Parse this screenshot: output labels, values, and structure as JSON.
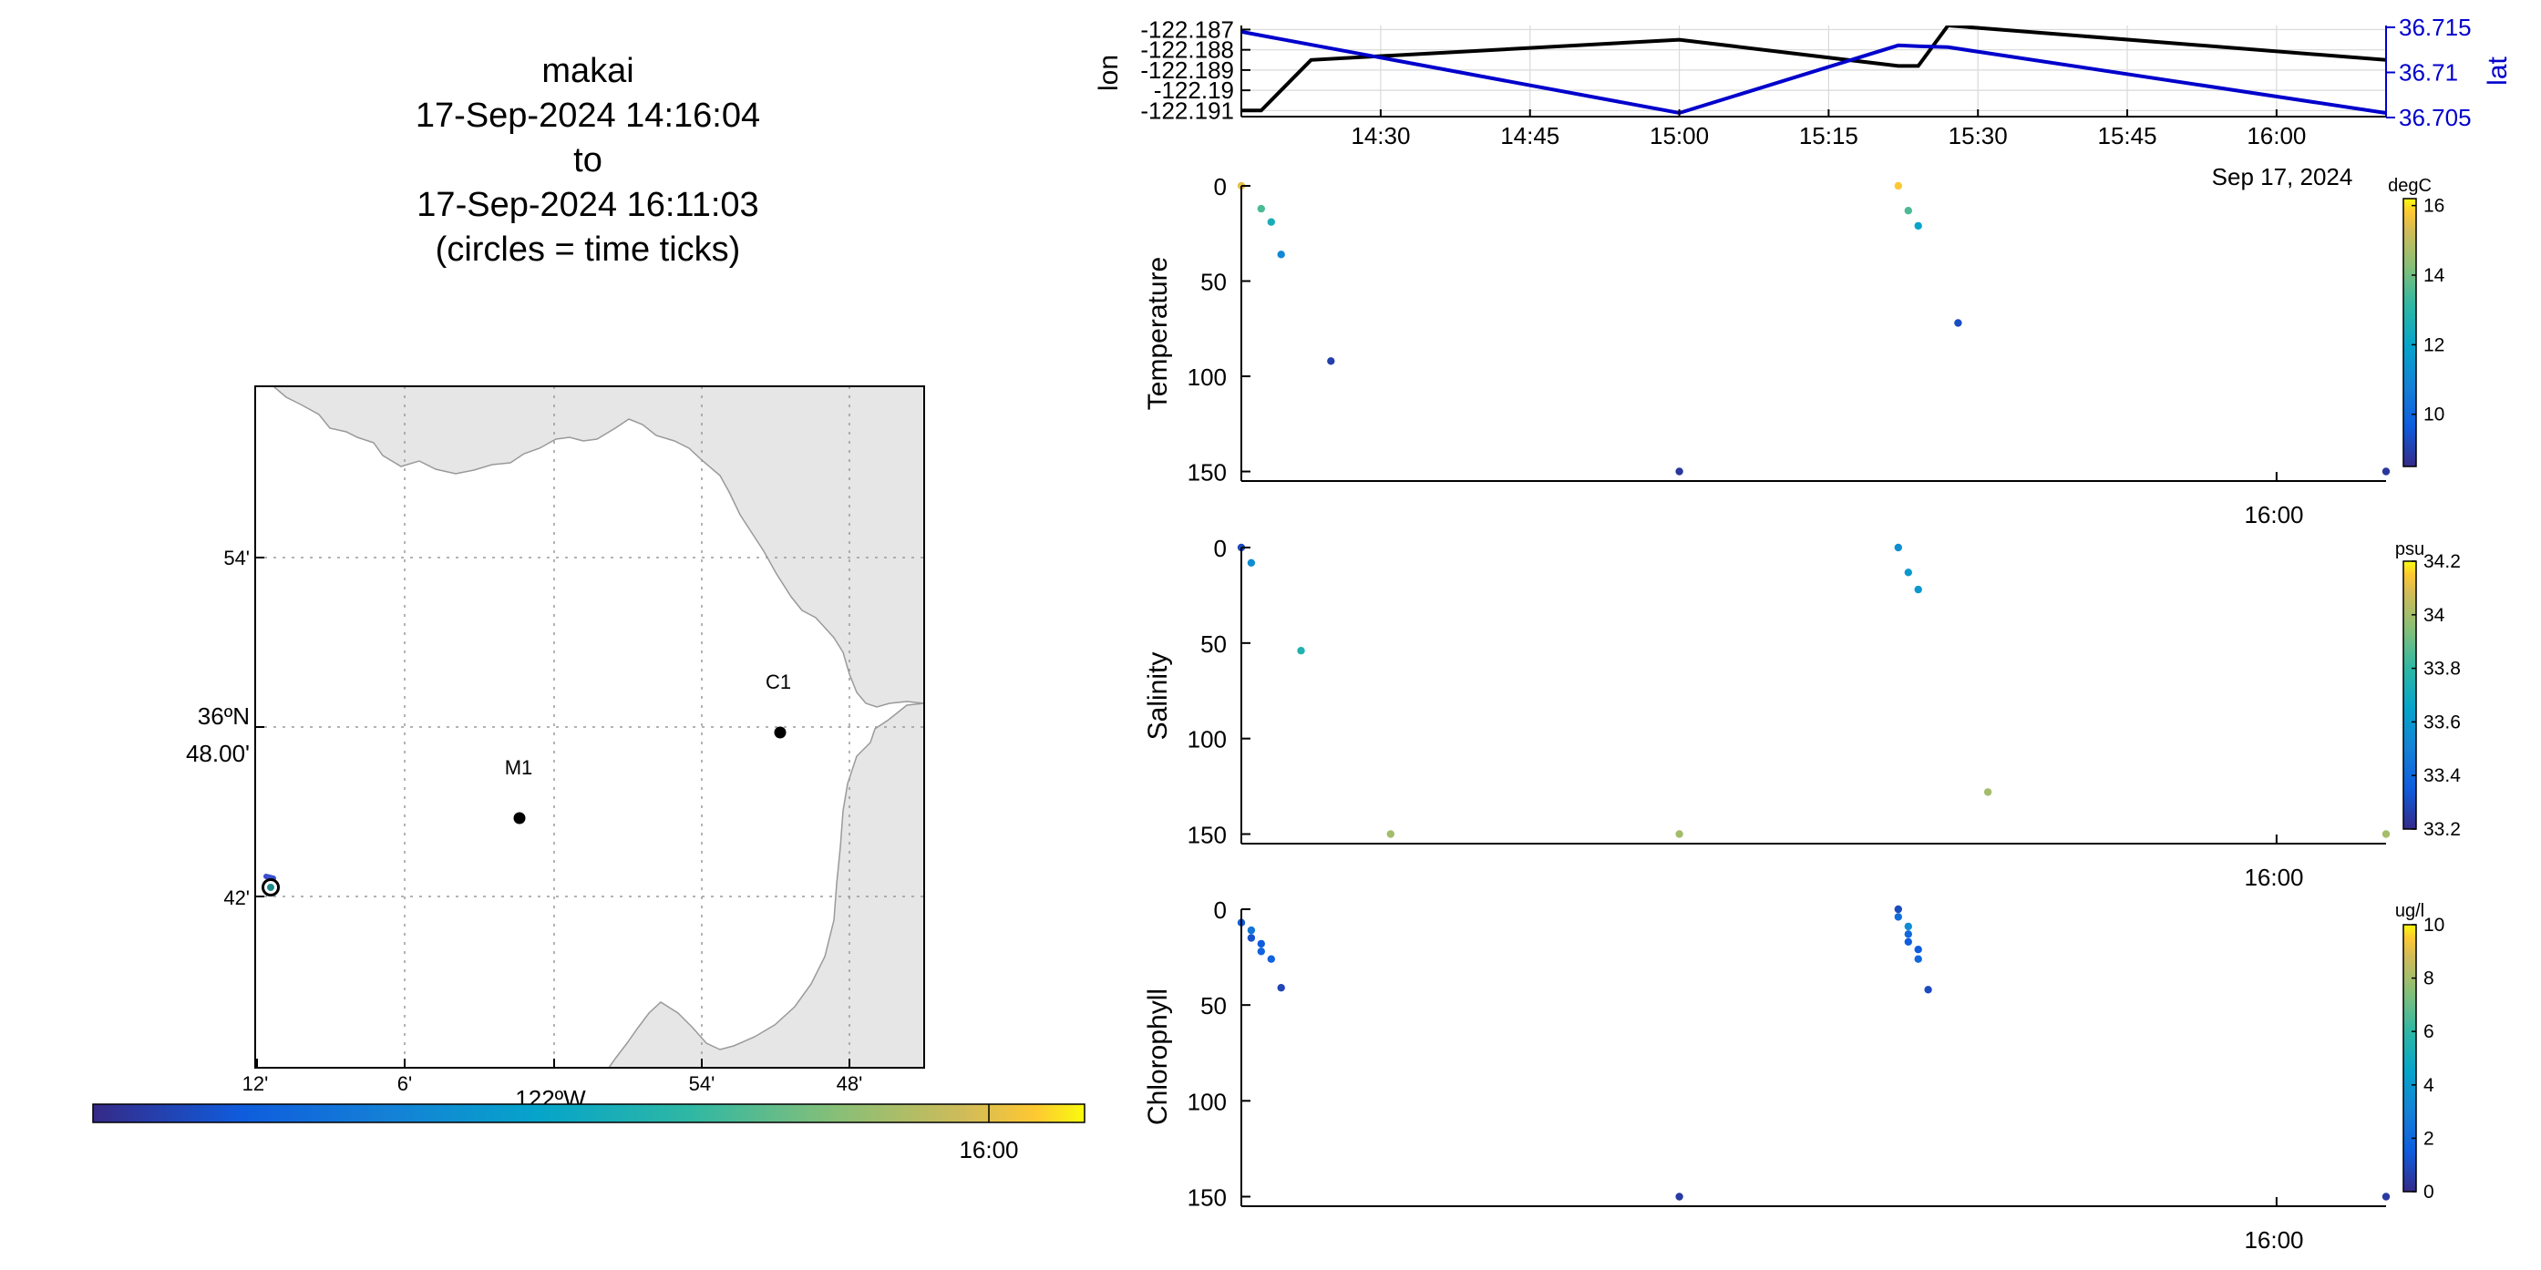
{
  "title": {
    "lines": [
      "makai",
      "17-Sep-2024 14:16:04",
      "to",
      "17-Sep-2024 16:11:03",
      "(circles = time ticks)"
    ]
  },
  "chart_data": [
    {
      "type": "map",
      "lon_range": [
        "-122.2167",
        "-121.7667"
      ],
      "lat_range": [
        "36.6167",
        "37.0"
      ],
      "x_ticks": [
        "12'",
        "6'",
        "54'",
        "48'"
      ],
      "x_label": "122ºW",
      "y_ticks": [
        "54'",
        "42'"
      ],
      "y_label_lines": [
        "36ºN",
        "48.00'"
      ],
      "stations": [
        {
          "name": "M1",
          "lon": -122.03,
          "lat": 36.75
        },
        {
          "name": "C1",
          "lon": -121.85,
          "lat": 36.8
        }
      ],
      "track_position": {
        "lon": -122.205,
        "lat": 36.71
      },
      "time_colorbar_tick": "16:00",
      "colors": {
        "land": "#e6e6e6",
        "coast": "#999999",
        "grid": "#9a9a9a"
      }
    },
    {
      "type": "line",
      "x_ticks": [
        "14:30",
        "14:45",
        "15:00",
        "15:15",
        "15:30",
        "15:45",
        "16:00"
      ],
      "x_date_label": "Sep 17, 2024",
      "series": [
        {
          "name": "lon",
          "axis": "left",
          "color": "#000000",
          "times": [
            "14:16",
            "14:18",
            "14:23",
            "15:00",
            "15:22",
            "15:24",
            "15:27",
            "16:11"
          ],
          "values": [
            -122.191,
            -122.191,
            -122.1885,
            -122.1875,
            -122.1888,
            -122.1888,
            -122.1868,
            -122.1885
          ]
        },
        {
          "name": "lat",
          "axis": "right",
          "color": "#0000cc",
          "times": [
            "14:16",
            "15:00",
            "15:22",
            "15:24",
            "15:27",
            "16:11"
          ],
          "values": [
            36.7145,
            36.7055,
            36.713,
            36.7129,
            36.7128,
            36.7055
          ]
        }
      ],
      "left_ylabel": "lon",
      "left_yticks": [
        "-122.187",
        "-122.188",
        "-122.189",
        "-122.19",
        "-122.191"
      ],
      "left_ylim": [
        -122.1913,
        -122.1868
      ],
      "right_ylabel": "lat",
      "right_yticks": [
        "36.715",
        "36.71",
        "36.705"
      ],
      "right_ylim": [
        36.7051,
        36.7152
      ]
    },
    {
      "type": "scatter",
      "ylabel": "Temperature",
      "yticks": [
        "0",
        "50",
        "100",
        "150"
      ],
      "ylim": [
        0,
        155
      ],
      "x_tick": "16:00",
      "x_date_label": "Sep 17, 2024",
      "colorbar": {
        "unit": "degC",
        "min": 8.5,
        "max": 16.2,
        "ticks": [
          "16",
          "14",
          "12",
          "10"
        ]
      },
      "points": [
        {
          "t": "14:16",
          "depth": 0,
          "value": 15.5
        },
        {
          "t": "14:18",
          "depth": 12,
          "value": 13.5
        },
        {
          "t": "14:19",
          "depth": 19,
          "value": 12.5
        },
        {
          "t": "14:20",
          "depth": 36,
          "value": 11
        },
        {
          "t": "14:25",
          "depth": 92,
          "value": 9
        },
        {
          "t": "15:00",
          "depth": 150,
          "value": 8.8
        },
        {
          "t": "15:22",
          "depth": 0,
          "value": 15.8
        },
        {
          "t": "15:23",
          "depth": 13,
          "value": 13.5
        },
        {
          "t": "15:24",
          "depth": 21,
          "value": 12
        },
        {
          "t": "15:28",
          "depth": 72,
          "value": 9.3
        },
        {
          "t": "16:11",
          "depth": 150,
          "value": 8.8
        }
      ]
    },
    {
      "type": "scatter",
      "ylabel": "Salinity",
      "yticks": [
        "0",
        "50",
        "100",
        "150"
      ],
      "ylim": [
        0,
        155
      ],
      "x_tick": "16:00",
      "x_date_label": "Sep 17, 2024",
      "colorbar": {
        "unit": "psu",
        "min": 33.2,
        "max": 34.2,
        "ticks": [
          "34.2",
          "34",
          "33.8",
          "33.6",
          "33.4",
          "33.2"
        ]
      },
      "points": [
        {
          "t": "14:16",
          "depth": 0,
          "value": 33.3
        },
        {
          "t": "14:17",
          "depth": 8,
          "value": 33.55
        },
        {
          "t": "14:22",
          "depth": 54,
          "value": 33.75
        },
        {
          "t": "14:31",
          "depth": 150,
          "value": 34.0
        },
        {
          "t": "15:00",
          "depth": 150,
          "value": 34.0
        },
        {
          "t": "15:22",
          "depth": 0,
          "value": 33.55
        },
        {
          "t": "15:23",
          "depth": 13,
          "value": 33.6
        },
        {
          "t": "15:24",
          "depth": 22,
          "value": 33.6
        },
        {
          "t": "15:31",
          "depth": 128,
          "value": 34.0
        },
        {
          "t": "16:11",
          "depth": 150,
          "value": 34.0
        }
      ]
    },
    {
      "type": "scatter",
      "ylabel": "Chlorophyll",
      "yticks": [
        "0",
        "50",
        "100",
        "150"
      ],
      "ylim": [
        0,
        155
      ],
      "x_tick": "16:00",
      "x_date_label": "Sep 17, 2024",
      "colorbar": {
        "unit": "ug/l",
        "min": 0,
        "max": 10,
        "ticks": [
          "10",
          "8",
          "6",
          "4",
          "2",
          "0"
        ]
      },
      "points": [
        {
          "t": "14:16",
          "depth": 7,
          "value": 1.5
        },
        {
          "t": "14:17",
          "depth": 11,
          "value": 2.5
        },
        {
          "t": "14:17",
          "depth": 15,
          "value": 1.2
        },
        {
          "t": "14:18",
          "depth": 18,
          "value": 1.5
        },
        {
          "t": "14:18",
          "depth": 22,
          "value": 1.8
        },
        {
          "t": "14:19",
          "depth": 26,
          "value": 1.8
        },
        {
          "t": "14:20",
          "depth": 41,
          "value": 0.8
        },
        {
          "t": "15:00",
          "depth": 150,
          "value": 0.5
        },
        {
          "t": "15:22",
          "depth": 0,
          "value": 1.0
        },
        {
          "t": "15:22",
          "depth": 4,
          "value": 2.2
        },
        {
          "t": "15:23",
          "depth": 9,
          "value": 3.5
        },
        {
          "t": "15:23",
          "depth": 13,
          "value": 2.0
        },
        {
          "t": "15:23",
          "depth": 17,
          "value": 1.6
        },
        {
          "t": "15:24",
          "depth": 21,
          "value": 1.5
        },
        {
          "t": "15:24",
          "depth": 26,
          "value": 2.0
        },
        {
          "t": "15:25",
          "depth": 42,
          "value": 1.0
        },
        {
          "t": "16:11",
          "depth": 150,
          "value": 0.5
        }
      ]
    }
  ]
}
